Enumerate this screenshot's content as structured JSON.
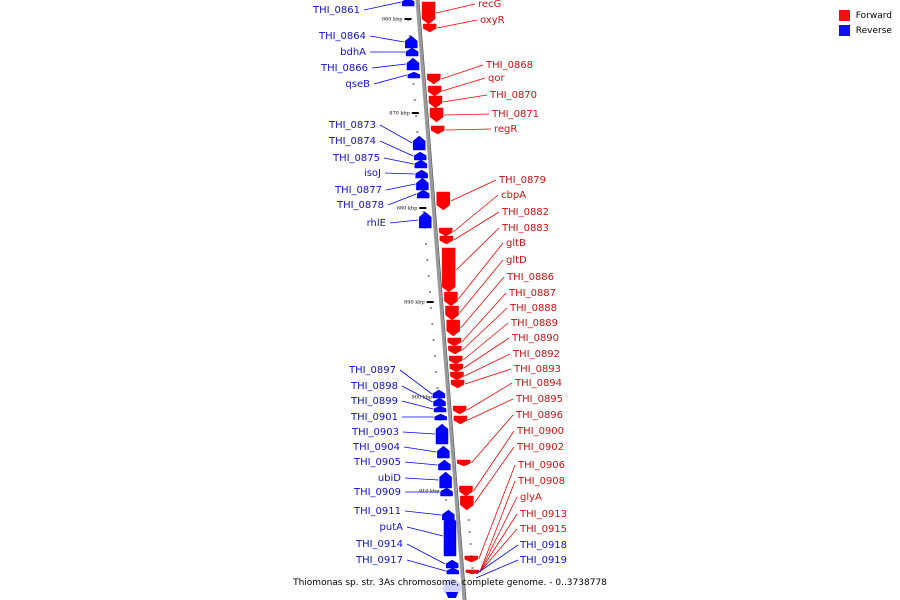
{
  "title": "Thiomonas sp. str. 3As chromosome, complete genome. - 0..3738778",
  "colors": {
    "forward": "#ff0000",
    "reverse": "#0000ff",
    "backbone": "#888888"
  },
  "legend": [
    {
      "label": "Forward",
      "color": "#ee1111"
    },
    {
      "label": "Reverse",
      "color": "#1111ee"
    }
  ],
  "kbp_ticks": [
    {
      "label": "860 kbp",
      "position_kbp": 860
    },
    {
      "label": "870 kbp",
      "position_kbp": 870
    },
    {
      "label": "880 kbp",
      "position_kbp": 880
    },
    {
      "label": "890 kbp",
      "position_kbp": 890
    },
    {
      "label": "900 kbp",
      "position_kbp": 900
    },
    {
      "label": "910 kbp",
      "position_kbp": 910
    }
  ],
  "genes_reverse": [
    "THI_0861",
    "THI_0864",
    "bdhA",
    "THI_0866",
    "qseB",
    "THI_0873",
    "THI_0874",
    "THI_0875",
    "isoJ",
    "THI_0877",
    "THI_0878",
    "rhlE",
    "THI_0897",
    "THI_0898",
    "THI_0899",
    "THI_0901",
    "THI_0903",
    "THI_0904",
    "THI_0905",
    "ubiD",
    "THI_0909",
    "THI_0911",
    "putA",
    "THI_0914",
    "THI_0917"
  ],
  "genes_forward": [
    "recG",
    "oxyR",
    "THI_0868",
    "qor",
    "THI_0870",
    "THI_0871",
    "regR",
    "THI_0879",
    "cbpA",
    "THI_0882",
    "THI_0883",
    "gltB",
    "gltD",
    "THI_0886",
    "THI_0887",
    "THI_0888",
    "THI_0889",
    "THI_0890",
    "THI_0892",
    "THI_0893",
    "THI_0894",
    "THI_0895",
    "THI_0896",
    "THI_0900",
    "THI_0902",
    "THI_0906",
    "THI_0908",
    "glyA",
    "THI_0913",
    "THI_0915"
  ],
  "genes_right_reverse": [
    "THI_0918",
    "THI_0919"
  ]
}
